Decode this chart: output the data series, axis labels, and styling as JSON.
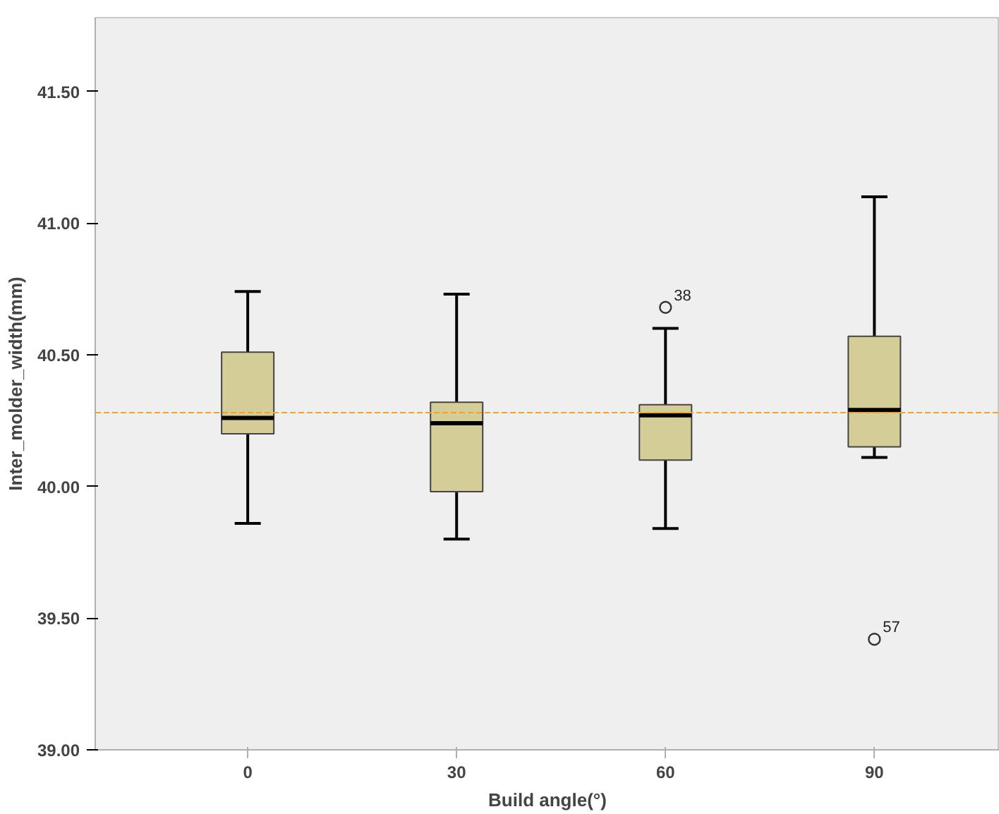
{
  "chart_data": {
    "type": "box",
    "xlabel": "Build angle(°)",
    "ylabel": "Inter_molder_width(mm)",
    "categories": [
      "0",
      "30",
      "60",
      "90"
    ],
    "color": "#d4cd98",
    "boxes": [
      {
        "low": 39.86,
        "q1": 40.2,
        "median": 40.26,
        "q3": 40.51,
        "high": 40.74
      },
      {
        "low": 39.8,
        "q1": 39.98,
        "median": 40.24,
        "q3": 40.32,
        "high": 40.73
      },
      {
        "low": 39.84,
        "q1": 40.1,
        "median": 40.27,
        "q3": 40.31,
        "high": 40.6,
        "outliers": [
          40.68
        ]
      },
      {
        "low": 40.11,
        "q1": 40.15,
        "median": 40.29,
        "q3": 40.57,
        "high": 41.1,
        "outliers": [
          39.42
        ]
      }
    ],
    "ylim": [
      39.0,
      41.78
    ],
    "yticks": [
      {
        "value": 39.0,
        "label": "39.00"
      },
      {
        "value": 39.5,
        "label": "39.50"
      },
      {
        "value": 40.0,
        "label": "40.00"
      },
      {
        "value": 40.5,
        "label": "40.50"
      },
      {
        "value": 41.0,
        "label": "41.00"
      },
      {
        "value": 41.5,
        "label": "41.50"
      }
    ],
    "ref_lines": [
      {
        "axis": "y",
        "value": 40.28,
        "label": null,
        "color": "#f5a02a",
        "line_style": "dashed"
      }
    ],
    "annotations": [
      "38",
      "57"
    ]
  }
}
